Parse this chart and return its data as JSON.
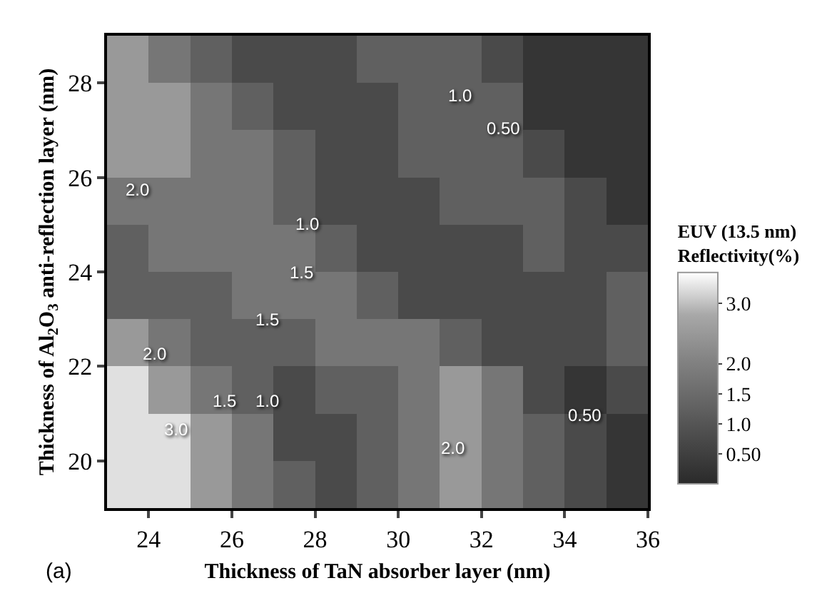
{
  "chart_data": {
    "type": "heatmap",
    "xlabel": "Thickness of TaN absorber layer (nm)",
    "ylabel": "Thickness of Al$_{2}$O$_{3}$ anti-reflection layer (nm)",
    "clabel": "EUV (13.5 nm)\nReflectivity(%)",
    "x": [
      23.5,
      24.5,
      25.5,
      26.5,
      27.5,
      28.5,
      29.5,
      30.5,
      31.5,
      32.5,
      33.5,
      34.5,
      35.5
    ],
    "y": [
      28.5,
      27.5,
      26.5,
      25.5,
      24.5,
      23.5,
      22.5,
      21.5,
      20.5,
      19.5
    ],
    "cells": [
      [
        2.5,
        1.75,
        1.25,
        0.75,
        0.75,
        0.75,
        1.25,
        1.25,
        1.25,
        0.75,
        0.25,
        0.25,
        0.25
      ],
      [
        2.5,
        2.5,
        1.75,
        1.25,
        0.75,
        0.75,
        0.75,
        1.25,
        1.25,
        1.25,
        0.25,
        0.25,
        0.25
      ],
      [
        2.5,
        2.5,
        1.75,
        1.75,
        1.25,
        0.75,
        0.75,
        1.25,
        1.25,
        1.25,
        0.75,
        0.25,
        0.25
      ],
      [
        1.75,
        1.75,
        1.75,
        1.75,
        1.25,
        0.75,
        0.75,
        0.75,
        1.25,
        1.25,
        1.25,
        0.75,
        0.25
      ],
      [
        1.25,
        1.75,
        1.75,
        1.75,
        1.75,
        1.25,
        0.75,
        0.75,
        0.75,
        0.75,
        1.25,
        0.75,
        0.75
      ],
      [
        1.25,
        1.25,
        1.25,
        1.75,
        1.75,
        1.75,
        1.25,
        0.75,
        0.75,
        0.75,
        0.75,
        0.75,
        1.25
      ],
      [
        2.5,
        1.75,
        1.25,
        1.25,
        1.25,
        1.75,
        1.75,
        1.75,
        1.25,
        0.75,
        0.75,
        0.75,
        1.25
      ],
      [
        3.25,
        2.5,
        1.75,
        1.25,
        0.75,
        1.25,
        1.25,
        1.75,
        2.5,
        1.75,
        0.75,
        0.25,
        0.75
      ],
      [
        3.25,
        3.25,
        2.5,
        1.75,
        0.75,
        0.75,
        1.25,
        1.75,
        2.5,
        1.75,
        1.25,
        0.75,
        0.25
      ],
      [
        3.25,
        3.25,
        2.5,
        1.75,
        1.25,
        0.75,
        1.25,
        1.75,
        2.5,
        1.75,
        1.25,
        0.75,
        0.25
      ]
    ],
    "colors": [
      "#2a2a2a",
      "#484848",
      "#676767",
      "#858585",
      "#a8a8a8",
      "#ffffff"
    ],
    "clim": [
      0,
      3.5
    ],
    "cticks": [
      {
        "value": 0.5,
        "label": "0.50"
      },
      {
        "value": 1.0,
        "label": "1.0"
      },
      {
        "value": 1.5,
        "label": "1.5"
      },
      {
        "value": 2.0,
        "label": "2.0"
      },
      {
        "value": 3.0,
        "label": "3.0"
      }
    ],
    "xlim": [
      23,
      36
    ],
    "xticks": [
      24,
      26,
      28,
      30,
      32,
      34,
      36
    ],
    "ylim": [
      19,
      29
    ],
    "yticks": [
      20,
      22,
      24,
      26,
      28
    ],
    "annotations": [
      "1.0",
      "0.50",
      "2.0",
      "1.0",
      "1.5",
      "1.5",
      "2.0",
      "1.5",
      "1.0",
      "3.0",
      "2.0",
      "0.50",
      "(a)"
    ]
  }
}
